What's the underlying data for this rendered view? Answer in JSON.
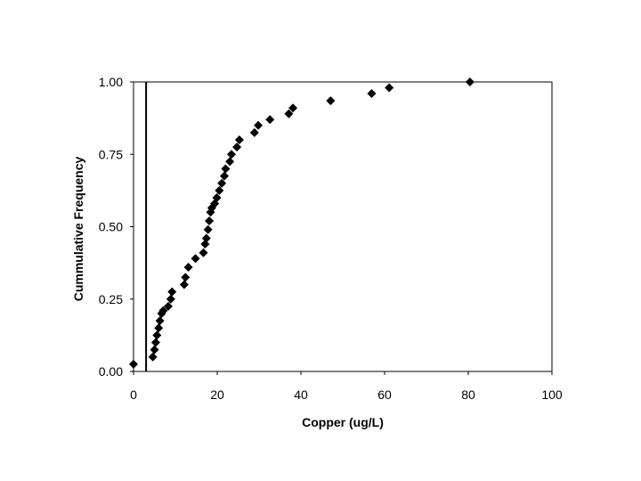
{
  "chart_data": {
    "type": "scatter",
    "title": "",
    "xlabel": "Copper (ug/L)",
    "ylabel": "Cummulative Frequency",
    "xlim": [
      0,
      100
    ],
    "ylim": [
      0,
      1
    ],
    "x_ticks": [
      0,
      20,
      40,
      60,
      80,
      100
    ],
    "x_tick_labels": [
      "0",
      "20",
      "40",
      "60",
      "80",
      "100"
    ],
    "y_ticks": [
      0,
      0.25,
      0.5,
      0.75,
      1.0
    ],
    "y_tick_labels": [
      "0.00",
      "0.25",
      "0.50",
      "0.75",
      "1.00"
    ],
    "grid": false,
    "legend": "none",
    "marker": "diamond",
    "marker_color": "#000000",
    "reference_line_x": 3,
    "series": [
      {
        "x": [
          0,
          4.6,
          5,
          5.3,
          5.6,
          6,
          6.3,
          6.7,
          7.1,
          8.3,
          8.9,
          9.2,
          12.1,
          12.4,
          13.1,
          14.8,
          16.7,
          17.1,
          17.4,
          17.8,
          18.1,
          18.4,
          18.7,
          19.4,
          19.9,
          20.5,
          21.1,
          21.7,
          22,
          23,
          23.4,
          24.7,
          25.3,
          28.9,
          29.8,
          32.6,
          37.1,
          38.1,
          47.1,
          56.9,
          61.1,
          80.4
        ],
        "y": [
          0.025,
          0.05,
          0.075,
          0.1,
          0.125,
          0.15,
          0.175,
          0.2,
          0.21,
          0.225,
          0.25,
          0.275,
          0.3,
          0.325,
          0.36,
          0.39,
          0.41,
          0.44,
          0.46,
          0.49,
          0.52,
          0.55,
          0.565,
          0.58,
          0.6,
          0.625,
          0.65,
          0.675,
          0.7,
          0.725,
          0.75,
          0.775,
          0.8,
          0.825,
          0.85,
          0.87,
          0.89,
          0.91,
          0.935,
          0.96,
          0.98,
          1.0
        ]
      }
    ]
  }
}
